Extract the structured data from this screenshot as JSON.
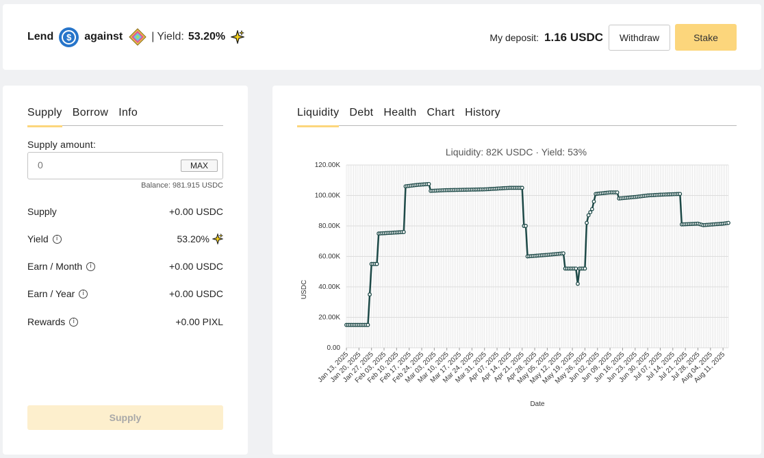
{
  "header": {
    "lend": "Lend",
    "against": "against",
    "separator": "|",
    "yield_label": "Yield:",
    "yield_value": "53.20%",
    "deposit_label": "My deposit:",
    "deposit_value": "1.16 USDC",
    "withdraw_label": "Withdraw",
    "stake_label": "Stake",
    "lend_asset_icon": "usdc-icon",
    "collateral_icon": "gem-icon",
    "reward_icon": "sparkle-icon"
  },
  "left": {
    "tabs": [
      {
        "label": "Supply",
        "active": true
      },
      {
        "label": "Borrow",
        "active": false
      },
      {
        "label": "Info",
        "active": false
      }
    ],
    "supply_amount_label": "Supply amount:",
    "amount_placeholder": "0",
    "max_label": "MAX",
    "balance": "Balance: 981.915 USDC",
    "rows": [
      {
        "label": "Supply",
        "value": "+0.00 USDC",
        "info": false
      },
      {
        "label": "Yield",
        "value": "53.20%",
        "info": true,
        "sparkle": true
      },
      {
        "label": "Earn / Month",
        "value": "+0.00 USDC",
        "info": true
      },
      {
        "label": "Earn / Year",
        "value": "+0.00 USDC",
        "info": true
      },
      {
        "label": "Rewards",
        "value": "+0.00 PIXL",
        "info": true
      }
    ],
    "supply_button": "Supply"
  },
  "right": {
    "tabs": [
      {
        "label": "Liquidity",
        "active": true
      },
      {
        "label": "Debt",
        "active": false
      },
      {
        "label": "Health",
        "active": false
      },
      {
        "label": "Chart",
        "active": false
      },
      {
        "label": "History",
        "active": false
      }
    ]
  },
  "colors": {
    "accent": "#fcd67c",
    "line": "#1e4a48",
    "usdc": "#2775ca"
  },
  "chart_data": {
    "type": "line",
    "title": "Liquidity: 82K USDC · Yield: 53%",
    "xlabel": "Date",
    "ylabel": "USDC",
    "ylim": [
      0,
      120000
    ],
    "y_ticks": [
      "0.00",
      "20.00K",
      "40.00K",
      "60.00K",
      "80.00K",
      "100.00K",
      "120.00K"
    ],
    "x_ticks": [
      "Jan 13, 2025",
      "Jan 20, 2025",
      "Jan 27, 2025",
      "Feb 03, 2025",
      "Feb 10, 2025",
      "Feb 17, 2025",
      "Feb 24, 2025",
      "Mar 03, 2025",
      "Mar 10, 2025",
      "Mar 17, 2025",
      "Mar 24, 2025",
      "Mar 31, 2025",
      "Apr 07, 2025",
      "Apr 14, 2025",
      "Apr 21, 2025",
      "Apr 28, 2025",
      "May 05, 2025",
      "May 12, 2025",
      "May 19, 2025",
      "May 26, 2025",
      "Jun 02, 2025",
      "Jun 09, 2025",
      "Jun 16, 2025",
      "Jun 23, 2025",
      "Jun 30, 2025",
      "Jul 07, 2025",
      "Jul 14, 2025",
      "Jul 21, 2025",
      "Jul 28, 2025",
      "Aug 04, 2025",
      "Aug 11, 2025"
    ],
    "grid": true,
    "series": [
      {
        "name": "Liquidity",
        "points": [
          [
            "Jan 13, 2025",
            15000
          ],
          [
            "Jan 25, 2025",
            15000
          ],
          [
            "Jan 26, 2025",
            35000
          ],
          [
            "Jan 27, 2025",
            55000
          ],
          [
            "Jan 30, 2025",
            55000
          ],
          [
            "Jan 31, 2025",
            75000
          ],
          [
            "Feb 14, 2025",
            76000
          ],
          [
            "Feb 15, 2025",
            106000
          ],
          [
            "Feb 22, 2025",
            107000
          ],
          [
            "Feb 28, 2025",
            107500
          ],
          [
            "Mar 01, 2025",
            103000
          ],
          [
            "Mar 10, 2025",
            103500
          ],
          [
            "Mar 31, 2025",
            104000
          ],
          [
            "Apr 14, 2025",
            105000
          ],
          [
            "Apr 21, 2025",
            105000
          ],
          [
            "Apr 22, 2025",
            80000
          ],
          [
            "Apr 23, 2025",
            80000
          ],
          [
            "Apr 24, 2025",
            60000
          ],
          [
            "May 05, 2025",
            61000
          ],
          [
            "May 14, 2025",
            62000
          ],
          [
            "May 15, 2025",
            52000
          ],
          [
            "May 21, 2025",
            52000
          ],
          [
            "May 22, 2025",
            42000
          ],
          [
            "May 23, 2025",
            52000
          ],
          [
            "May 26, 2025",
            52000
          ],
          [
            "May 27, 2025",
            82000
          ],
          [
            "May 28, 2025",
            87000
          ],
          [
            "May 30, 2025",
            91000
          ],
          [
            "Jun 01, 2025",
            101000
          ],
          [
            "Jun 09, 2025",
            102000
          ],
          [
            "Jun 13, 2025",
            102000
          ],
          [
            "Jun 14, 2025",
            98000
          ],
          [
            "Jun 23, 2025",
            99000
          ],
          [
            "Jun 30, 2025",
            100000
          ],
          [
            "Jul 07, 2025",
            100500
          ],
          [
            "Jul 18, 2025",
            101000
          ],
          [
            "Jul 19, 2025",
            81000
          ],
          [
            "Jul 28, 2025",
            81500
          ],
          [
            "Jul 31, 2025",
            80500
          ],
          [
            "Aug 11, 2025",
            81500
          ],
          [
            "Aug 14, 2025",
            82000
          ]
        ]
      }
    ]
  }
}
